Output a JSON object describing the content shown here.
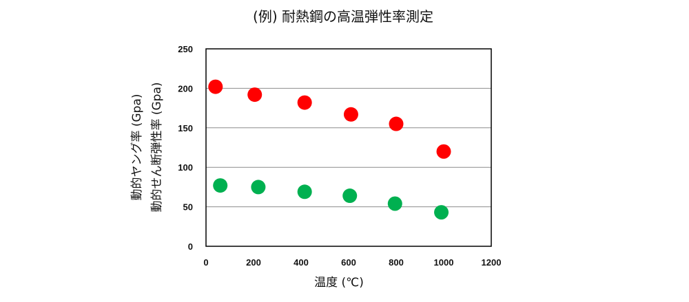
{
  "chart_data": {
    "type": "scatter",
    "title": "(例) 耐熱鋼の高温弾性率測定",
    "xlabel": "温度 (℃)",
    "ylabel_lines": [
      "動的ヤング率 (Gpa)",
      "動的せん断弾性率 (Gpa)"
    ],
    "xlim": [
      0,
      1200
    ],
    "ylim": [
      0,
      250
    ],
    "xticks": [
      "0",
      "200",
      "400",
      "600",
      "800",
      "1000",
      "1200"
    ],
    "yticks": [
      "0",
      "50",
      "100",
      "150",
      "200",
      "250"
    ],
    "grid": true,
    "series": [
      {
        "color": "#ff0000",
        "x": [
          40,
          205,
          415,
          610,
          800,
          1000
        ],
        "y": [
          202,
          192,
          182,
          167,
          155,
          120
        ]
      },
      {
        "color": "#00b050",
        "x": [
          60,
          220,
          415,
          605,
          795,
          990
        ],
        "y": [
          77,
          75,
          69,
          64,
          54,
          43
        ]
      }
    ]
  }
}
